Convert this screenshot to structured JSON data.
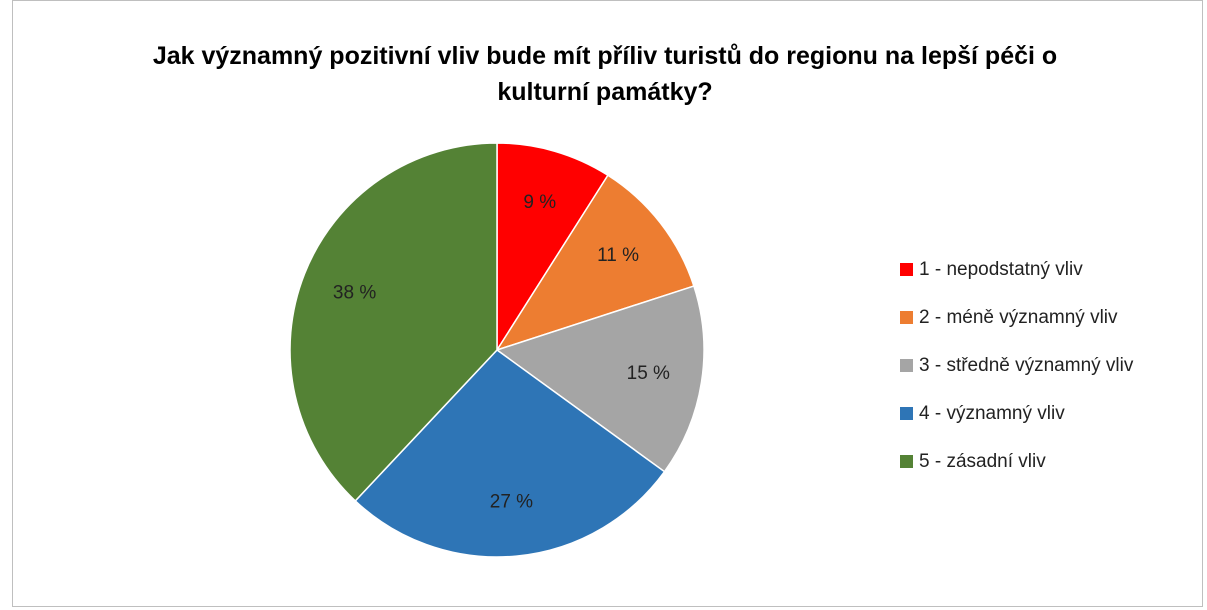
{
  "chart_data": {
    "type": "pie",
    "title": "Jak významný pozitivní vliv bude mít příliv turistů do regionu na lepší péči o kulturní památky?",
    "categories": [
      "1 - nepodstatný vliv",
      "2 - méně významný vliv",
      "3 - středně významný vliv",
      "4 - významný vliv",
      "5 - zásadní vliv"
    ],
    "values": [
      9,
      11,
      15,
      27,
      38
    ],
    "value_labels": [
      "9 %",
      "11 %",
      "15 %",
      "27 %",
      "38 %"
    ],
    "colors": [
      "#ff0000",
      "#ed7d31",
      "#a5a5a5",
      "#2e75b6",
      "#548235"
    ],
    "legend": "right"
  }
}
